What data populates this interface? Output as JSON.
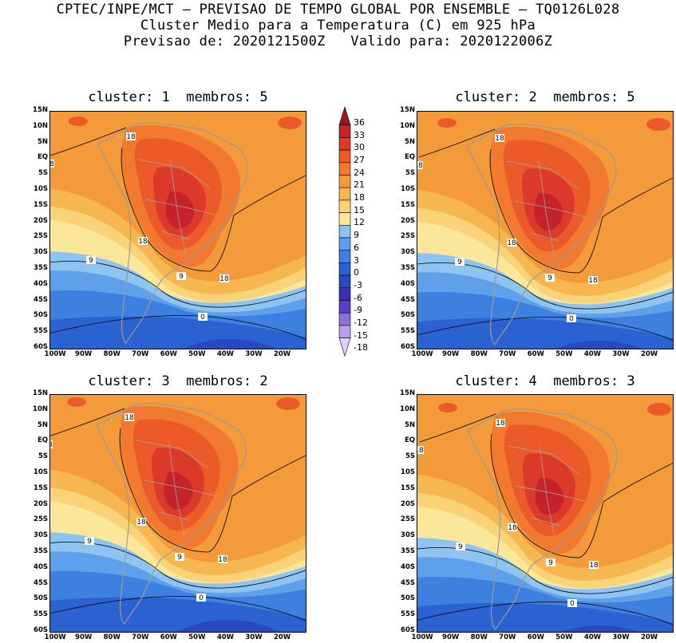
{
  "header": {
    "line1": "CPTEC/INPE/MCT — PREVISAO DE TEMPO GLOBAL POR ENSEMBLE — TQ0126L028",
    "line2": "Cluster Medio para a Temperatura (C) em 925 hPa",
    "line3": "Previsao de: 2020121500Z   Valido para: 2020122006Z"
  },
  "panels": [
    {
      "title": "cluster: 1  membros: 5",
      "contour_labels": [
        "18",
        "18",
        "18",
        "18",
        "9",
        "9",
        "0"
      ]
    },
    {
      "title": "cluster: 2  membros: 5",
      "contour_labels": [
        "18",
        "18",
        "18",
        "18",
        "9",
        "9",
        "0"
      ]
    },
    {
      "title": "cluster: 3  membros: 2",
      "contour_labels": [
        "18",
        "18",
        "18",
        "18",
        "9",
        "9",
        "0"
      ]
    },
    {
      "title": "cluster: 4  membros: 3",
      "contour_labels": [
        "18",
        "18",
        "18",
        "18",
        "9",
        "9",
        "0"
      ]
    }
  ],
  "lat_labels": [
    "15N",
    "10N",
    "5N",
    "EQ",
    "5S",
    "10S",
    "15S",
    "20S",
    "25S",
    "30S",
    "35S",
    "40S",
    "45S",
    "50S",
    "55S",
    "60S"
  ],
  "lon_labels": [
    "100W",
    "90W",
    "80W",
    "70W",
    "60W",
    "50W",
    "40W",
    "30W",
    "20W"
  ],
  "colorbar": {
    "levels": [
      "36",
      "33",
      "30",
      "27",
      "24",
      "21",
      "18",
      "15",
      "12",
      "9",
      "6",
      "3",
      "0",
      "-3",
      "-6",
      "-9",
      "-12",
      "-15",
      "-18"
    ],
    "colors": [
      "#a0141e",
      "#c4232b",
      "#db3a2a",
      "#ec5a2a",
      "#f27a30",
      "#f39a3a",
      "#f6b650",
      "#fad278",
      "#fbe79a",
      "#8fc3f2",
      "#5ea0ea",
      "#3d80e0",
      "#2a62d2",
      "#2a48c0",
      "#3a30b8",
      "#5a40c8",
      "#8a70d8",
      "#b8a0e8",
      "#ddd0f4"
    ]
  }
}
